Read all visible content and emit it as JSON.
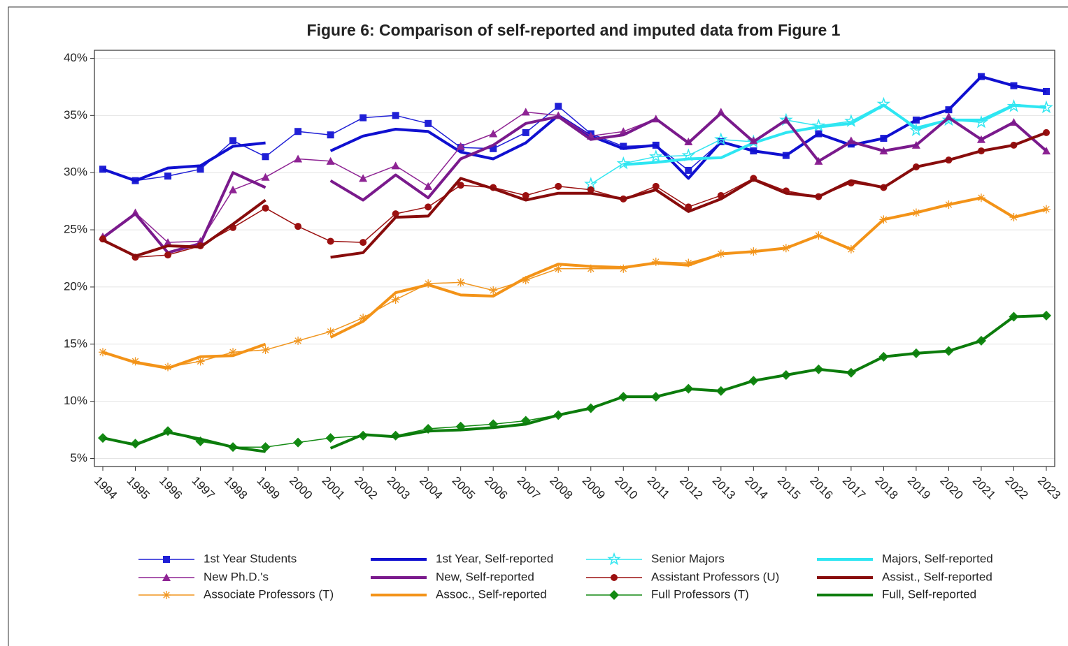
{
  "chart_data": {
    "type": "line",
    "title": "Figure 6: Comparison of self-reported and imputed data from Figure 1",
    "categories": [
      "1994",
      "1995",
      "1996",
      "1997",
      "1998",
      "1999",
      "2000",
      "2001",
      "2002",
      "2003",
      "2004",
      "2005",
      "2006",
      "2007",
      "2008",
      "2009",
      "2010",
      "2011",
      "2012",
      "2013",
      "2014",
      "2015",
      "2016",
      "2017",
      "2018",
      "2019",
      "2020",
      "2021",
      "2022",
      "2023"
    ],
    "ylim": [
      4.3,
      40.7
    ],
    "yticks": [
      {
        "value": 5,
        "label": "5%"
      },
      {
        "value": 10,
        "label": "10%"
      },
      {
        "value": 15,
        "label": "15%"
      },
      {
        "value": 20,
        "label": "20%"
      },
      {
        "value": 25,
        "label": "25%"
      },
      {
        "value": 30,
        "label": "30%"
      },
      {
        "value": 35,
        "label": "35%"
      },
      {
        "value": 40,
        "label": "40%"
      }
    ],
    "grid": true,
    "series": [
      {
        "name": "1st Year Students",
        "color": "#1f1fd6",
        "line_width": 1.5,
        "marker": "square",
        "values": [
          30.3,
          29.3,
          29.7,
          30.3,
          32.8,
          31.4,
          33.6,
          33.3,
          34.8,
          35.0,
          34.3,
          32.2,
          32.1,
          33.5,
          35.8,
          33.4,
          32.3,
          32.4,
          30.2,
          32.7,
          31.9,
          31.5,
          33.4,
          32.5,
          33.0,
          34.6,
          35.5,
          38.4,
          37.6,
          37.1
        ]
      },
      {
        "name": "1st Year, Self-reported",
        "color": "#1010d0",
        "line_width": 4,
        "marker": "none",
        "values": [
          30.3,
          29.3,
          30.4,
          30.6,
          32.3,
          32.6,
          null,
          31.9,
          33.2,
          33.8,
          33.6,
          31.8,
          31.2,
          32.6,
          35.0,
          33.2,
          32.1,
          32.4,
          29.5,
          32.7,
          31.9,
          31.5,
          33.4,
          32.4,
          33.0,
          34.6,
          35.5,
          38.4,
          37.6,
          37.1
        ]
      },
      {
        "name": "Senior Majors",
        "color": "#33e6f0",
        "line_width": 1.5,
        "marker": "star",
        "values": [
          null,
          null,
          null,
          null,
          null,
          null,
          null,
          null,
          null,
          null,
          null,
          null,
          null,
          null,
          null,
          29.0,
          30.8,
          31.4,
          31.5,
          32.9,
          32.7,
          34.6,
          34.1,
          34.5,
          36.0,
          33.7,
          34.6,
          34.4,
          35.8,
          35.7
        ]
      },
      {
        "name": "Majors, Self-reported",
        "color": "#2ee6f2",
        "line_width": 4,
        "marker": "none",
        "values": [
          null,
          null,
          null,
          null,
          null,
          null,
          null,
          null,
          null,
          null,
          null,
          null,
          null,
          null,
          null,
          null,
          30.7,
          30.9,
          31.2,
          31.3,
          32.6,
          33.5,
          34.0,
          34.3,
          35.9,
          33.9,
          34.6,
          34.6,
          35.9,
          35.7
        ]
      },
      {
        "name": "New Ph.D.'s",
        "color": "#8e2494",
        "line_width": 1.5,
        "marker": "triangle",
        "values": [
          24.4,
          26.5,
          23.9,
          24.0,
          28.5,
          29.6,
          31.2,
          31.0,
          29.5,
          30.6,
          28.8,
          32.3,
          33.4,
          35.3,
          35.0,
          33.2,
          33.6,
          34.7,
          32.7,
          35.3,
          32.8,
          34.6,
          31.0,
          32.8,
          31.9,
          32.4,
          34.9,
          32.9,
          34.4,
          31.9
        ]
      },
      {
        "name": "New, Self-reported",
        "color": "#7a1a8c",
        "line_width": 4,
        "marker": "none",
        "values": [
          24.3,
          26.4,
          23.0,
          23.8,
          30.0,
          28.7,
          null,
          29.3,
          27.6,
          29.8,
          27.8,
          31.2,
          32.4,
          34.3,
          34.9,
          32.9,
          33.3,
          34.7,
          32.6,
          35.2,
          32.7,
          34.6,
          31.0,
          32.7,
          31.9,
          32.4,
          34.8,
          32.9,
          34.4,
          31.9
        ]
      },
      {
        "name": "Assistant Professors (U)",
        "color": "#9b1010",
        "line_width": 1.5,
        "marker": "circle",
        "values": [
          24.2,
          22.6,
          22.8,
          23.6,
          25.2,
          26.9,
          25.3,
          24.0,
          23.9,
          26.4,
          27.0,
          28.9,
          28.7,
          28.0,
          28.8,
          28.5,
          27.7,
          28.8,
          27.0,
          28.0,
          29.5,
          28.4,
          27.9,
          29.1,
          28.7,
          30.5,
          31.1,
          31.9,
          32.4,
          33.5
        ]
      },
      {
        "name": "Assist., Self-reported",
        "color": "#880c0c",
        "line_width": 4,
        "marker": "none",
        "values": [
          24.1,
          22.7,
          23.6,
          23.5,
          25.5,
          27.6,
          null,
          22.6,
          23.0,
          26.1,
          26.2,
          29.5,
          28.6,
          27.6,
          28.2,
          28.2,
          27.7,
          28.5,
          26.6,
          27.7,
          29.4,
          28.2,
          27.9,
          29.3,
          28.7,
          30.5,
          31.1,
          31.9,
          32.4,
          33.5
        ]
      },
      {
        "name": "Associate Professors (T)",
        "color": "#f0951e",
        "line_width": 1.5,
        "marker": "asterisk",
        "values": [
          14.3,
          13.5,
          13.0,
          13.5,
          14.3,
          14.5,
          15.3,
          16.1,
          17.3,
          18.9,
          20.3,
          20.4,
          19.7,
          20.6,
          21.6,
          21.6,
          21.6,
          22.2,
          22.1,
          22.9,
          23.1,
          23.4,
          24.5,
          23.3,
          25.9,
          26.5,
          27.2,
          27.8,
          26.1,
          26.8
        ]
      },
      {
        "name": "Assoc., Self-reported",
        "color": "#f39318",
        "line_width": 4,
        "marker": "none",
        "values": [
          14.3,
          13.4,
          12.9,
          13.9,
          14.0,
          15.0,
          null,
          15.6,
          17.0,
          19.5,
          20.2,
          19.3,
          19.2,
          20.8,
          22.0,
          21.8,
          21.7,
          22.1,
          21.9,
          22.9,
          23.1,
          23.4,
          24.5,
          23.3,
          25.9,
          26.5,
          27.2,
          27.8,
          26.1,
          26.8
        ]
      },
      {
        "name": "Full Professors (T)",
        "color": "#138a13",
        "line_width": 1.5,
        "marker": "diamond",
        "values": [
          6.8,
          6.3,
          7.4,
          6.5,
          6.0,
          6.0,
          6.4,
          6.8,
          7.0,
          7.0,
          7.6,
          7.8,
          8.0,
          8.3,
          8.8,
          9.4,
          10.4,
          10.4,
          11.1,
          10.9,
          11.8,
          12.3,
          12.8,
          12.5,
          13.9,
          14.2,
          14.4,
          15.3,
          17.4,
          17.5
        ]
      },
      {
        "name": "Full, Self-reported",
        "color": "#0c7c0c",
        "line_width": 4,
        "marker": "none",
        "values": [
          6.8,
          6.2,
          7.3,
          6.7,
          6.0,
          5.6,
          null,
          5.9,
          7.1,
          6.9,
          7.4,
          7.5,
          7.7,
          8.0,
          8.8,
          9.4,
          10.4,
          10.4,
          11.1,
          10.9,
          11.8,
          12.3,
          12.8,
          12.5,
          13.9,
          14.2,
          14.4,
          15.3,
          17.4,
          17.5
        ]
      }
    ]
  }
}
